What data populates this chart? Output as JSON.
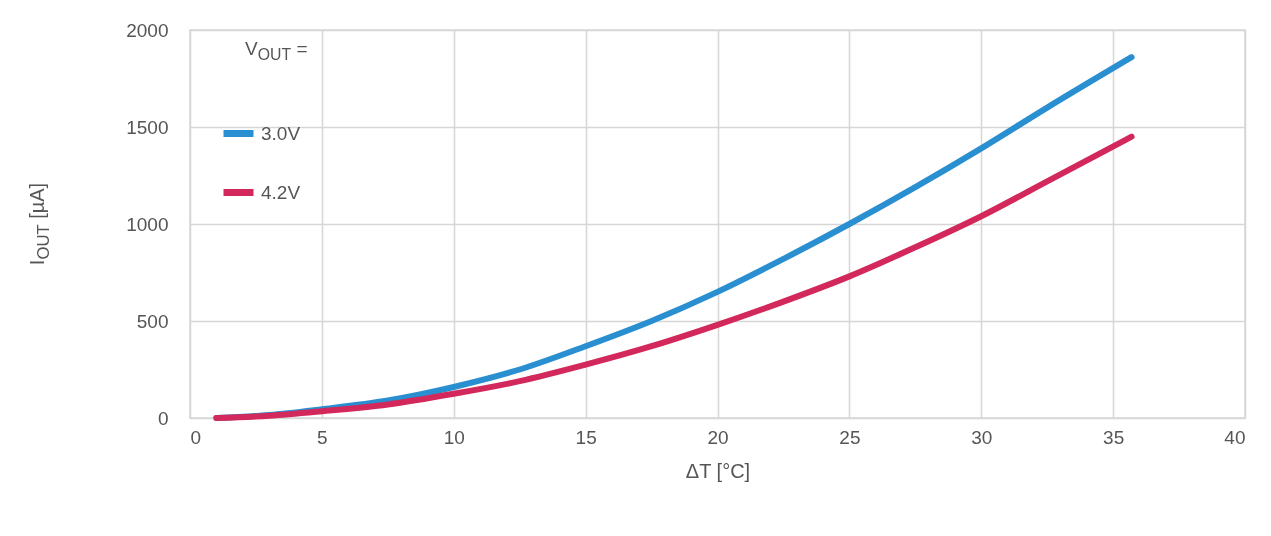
{
  "chart_data": {
    "type": "line",
    "xlabel": "ΔT [°C]",
    "ylabel": "I$_{OUT}$ [µA]",
    "legend_title": "V$_{OUT}$ =",
    "x": [
      1,
      3,
      5,
      7.5,
      10,
      12.5,
      15,
      17.5,
      20,
      22.5,
      25,
      27.5,
      30,
      32.5,
      35.7
    ],
    "series": [
      {
        "name": "3.0V",
        "color": "#2a8fd0",
        "values": [
          0,
          15,
          45,
          90,
          160,
          250,
          370,
          500,
          650,
          820,
          1000,
          1190,
          1390,
          1600,
          1860
        ]
      },
      {
        "name": "4.2V",
        "color": "#d3285c",
        "values": [
          0,
          12,
          35,
          70,
          125,
          190,
          275,
          370,
          480,
          600,
          730,
          880,
          1040,
          1220,
          1450
        ]
      }
    ],
    "xlim": [
      0,
      40
    ],
    "xticks": [
      0,
      5,
      10,
      15,
      20,
      25,
      30,
      35,
      40
    ],
    "ylim": [
      0,
      2000
    ],
    "yticks": [
      0,
      500,
      1000,
      1500,
      2000
    ],
    "grid": true,
    "legend": "top left"
  }
}
